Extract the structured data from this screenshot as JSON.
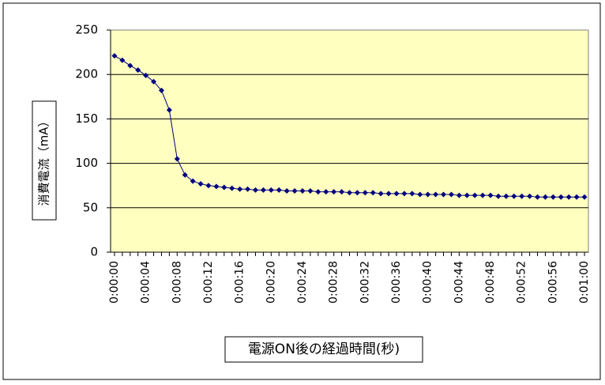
{
  "chart_data": {
    "type": "line",
    "x_label": "電源ON後の経過時間(秒)",
    "y_label": "消費電流（mA）",
    "categories": [
      "0:00:00",
      null,
      null,
      null,
      "0:00:04",
      null,
      null,
      null,
      "0:00:08",
      null,
      null,
      null,
      "0:00:12",
      null,
      null,
      null,
      "0:00:16",
      null,
      null,
      null,
      "0:00:20",
      null,
      null,
      null,
      "0:00:24",
      null,
      null,
      null,
      "0:00:28",
      null,
      null,
      null,
      "0:00:32",
      null,
      null,
      null,
      "0:00:36",
      null,
      null,
      null,
      "0:00:40",
      null,
      null,
      null,
      "0:00:44",
      null,
      null,
      null,
      "0:00:48",
      null,
      null,
      null,
      "0:00:52",
      null,
      null,
      null,
      "0:00:56",
      null,
      null,
      null,
      "0:01:00"
    ],
    "series": [
      {
        "color": "#000080",
        "values": [
          221,
          216,
          210,
          205,
          199,
          192,
          182,
          160,
          105,
          87,
          80,
          77,
          75,
          74,
          73,
          72,
          71,
          71,
          70,
          70,
          70,
          70,
          69,
          69,
          69,
          69,
          68,
          68,
          68,
          68,
          67,
          67,
          67,
          67,
          66,
          66,
          66,
          66,
          66,
          65,
          65,
          65,
          65,
          65,
          64,
          64,
          64,
          64,
          64,
          63,
          63,
          63,
          63,
          63,
          62,
          62,
          62,
          62,
          62,
          62,
          62
        ]
      }
    ],
    "ylim": [
      0,
      250
    ],
    "yticks": [
      0,
      50,
      100,
      150,
      200,
      250
    ],
    "grid": true,
    "plot_background": "#ffffc0"
  }
}
